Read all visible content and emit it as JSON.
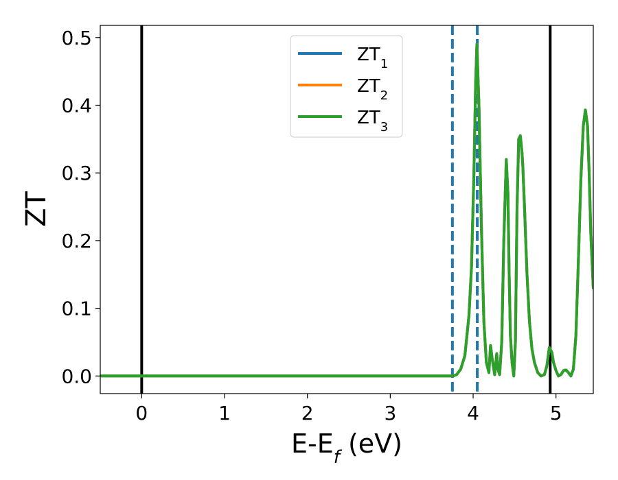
{
  "chart_data": {
    "type": "line",
    "xlabel": "E-E",
    "xlabel_sub": "f",
    "xlabel_unit": " (eV)",
    "ylabel": "ZT",
    "xlim": [
      -0.5,
      5.45
    ],
    "ylim": [
      -0.026,
      0.518
    ],
    "xticks": [
      0,
      1,
      2,
      3,
      4,
      5
    ],
    "xtick_labels": [
      "0",
      "1",
      "2",
      "3",
      "4",
      "5"
    ],
    "yticks": [
      0.0,
      0.1,
      0.2,
      0.3,
      0.4,
      0.5
    ],
    "ytick_labels": [
      "0.0",
      "0.1",
      "0.2",
      "0.3",
      "0.4",
      "0.5"
    ],
    "grid": false,
    "legend_position": "top-center",
    "vertical_lines": [
      {
        "x": 0.0,
        "style": "solid",
        "color": "#000000"
      },
      {
        "x": 4.93,
        "style": "solid",
        "color": "#000000"
      },
      {
        "x": 3.75,
        "style": "dashed",
        "color": "#1f77b4"
      },
      {
        "x": 4.05,
        "style": "dashed",
        "color": "#1f77b4"
      }
    ],
    "x": [
      -0.5,
      3.0,
      3.7,
      3.76,
      3.8,
      3.85,
      3.9,
      3.95,
      3.98,
      4.01,
      4.03,
      4.045,
      4.07,
      4.1,
      4.13,
      4.16,
      4.19,
      4.21,
      4.23,
      4.26,
      4.285,
      4.3,
      4.32,
      4.345,
      4.37,
      4.4,
      4.42,
      4.435,
      4.45,
      4.47,
      4.49,
      4.51,
      4.53,
      4.55,
      4.57,
      4.59,
      4.6,
      4.62,
      4.65,
      4.68,
      4.71,
      4.74,
      4.78,
      4.82,
      4.86,
      4.89,
      4.92,
      4.95,
      4.97,
      5.0,
      5.03,
      5.06,
      5.09,
      5.12,
      5.15,
      5.18,
      5.21,
      5.24,
      5.27,
      5.3,
      5.33,
      5.355,
      5.38,
      5.4,
      5.42,
      5.45
    ],
    "series": [
      {
        "name": "ZT",
        "name_sub": "1",
        "color": "#1f77b4",
        "values": [
          0.0,
          0.0,
          0.0,
          0.0,
          0.002,
          0.01,
          0.03,
          0.09,
          0.16,
          0.3,
          0.43,
          0.49,
          0.4,
          0.22,
          0.08,
          0.02,
          0.005,
          0.045,
          0.025,
          0.002,
          0.033,
          0.01,
          0.002,
          0.05,
          0.2,
          0.32,
          0.27,
          0.15,
          0.06,
          0.02,
          0.0,
          0.05,
          0.25,
          0.35,
          0.355,
          0.33,
          0.31,
          0.25,
          0.15,
          0.08,
          0.04,
          0.02,
          0.005,
          0.0,
          0.002,
          0.015,
          0.042,
          0.035,
          0.02,
          0.008,
          0.0,
          0.002,
          0.008,
          0.009,
          0.005,
          0.0,
          0.01,
          0.06,
          0.17,
          0.29,
          0.37,
          0.393,
          0.37,
          0.3,
          0.21,
          0.13
        ]
      },
      {
        "name": "ZT",
        "name_sub": "2",
        "color": "#ff7f0e",
        "values": [
          0.0,
          0.0,
          0.0,
          0.0,
          0.002,
          0.01,
          0.03,
          0.09,
          0.16,
          0.3,
          0.43,
          0.49,
          0.4,
          0.22,
          0.08,
          0.02,
          0.005,
          0.045,
          0.025,
          0.002,
          0.033,
          0.01,
          0.002,
          0.05,
          0.2,
          0.32,
          0.27,
          0.15,
          0.06,
          0.02,
          0.0,
          0.05,
          0.25,
          0.35,
          0.355,
          0.33,
          0.31,
          0.25,
          0.15,
          0.08,
          0.04,
          0.02,
          0.005,
          0.0,
          0.002,
          0.015,
          0.042,
          0.035,
          0.02,
          0.008,
          0.0,
          0.002,
          0.008,
          0.009,
          0.005,
          0.0,
          0.01,
          0.06,
          0.17,
          0.29,
          0.37,
          0.393,
          0.37,
          0.3,
          0.21,
          0.13
        ]
      },
      {
        "name": "ZT",
        "name_sub": "3",
        "color": "#2ca02c",
        "values": [
          0.0,
          0.0,
          0.0,
          0.0,
          0.002,
          0.01,
          0.03,
          0.09,
          0.16,
          0.3,
          0.43,
          0.49,
          0.4,
          0.22,
          0.08,
          0.02,
          0.005,
          0.045,
          0.025,
          0.002,
          0.033,
          0.01,
          0.002,
          0.05,
          0.2,
          0.32,
          0.27,
          0.15,
          0.06,
          0.02,
          0.0,
          0.05,
          0.25,
          0.35,
          0.355,
          0.33,
          0.31,
          0.25,
          0.15,
          0.08,
          0.04,
          0.02,
          0.005,
          0.0,
          0.002,
          0.015,
          0.042,
          0.035,
          0.02,
          0.008,
          0.0,
          0.002,
          0.008,
          0.009,
          0.005,
          0.0,
          0.01,
          0.06,
          0.17,
          0.29,
          0.37,
          0.393,
          0.37,
          0.3,
          0.21,
          0.13
        ]
      }
    ]
  }
}
